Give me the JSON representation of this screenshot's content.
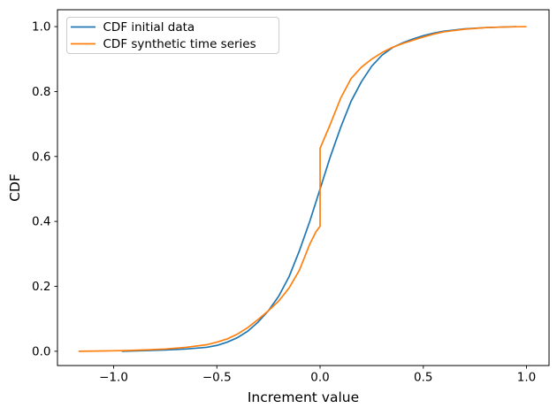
{
  "figure": {
    "background": "#ffffff",
    "spine_color": "#000000"
  },
  "chart_data": {
    "type": "line",
    "title": "",
    "xlabel": "Increment value",
    "ylabel": "CDF",
    "xlim": [
      -1.272,
      1.109
    ],
    "ylim": [
      -0.044,
      1.052
    ],
    "grid": false,
    "xticks": {
      "values": [
        -1.0,
        -0.5,
        0.0,
        0.5,
        1.0
      ],
      "labels": [
        "−1.0",
        "−0.5",
        "0.0",
        "0.5",
        "1.0"
      ]
    },
    "yticks": {
      "values": [
        0.0,
        0.2,
        0.4,
        0.6,
        0.8,
        1.0
      ],
      "labels": [
        "0.0",
        "0.2",
        "0.4",
        "0.6",
        "0.8",
        "1.0"
      ]
    },
    "legend": {
      "position": "upper left",
      "entries": [
        {
          "label": "CDF initial data",
          "color": "#1f77b4"
        },
        {
          "label": "CDF synthetic time series",
          "color": "#ff7f0e"
        }
      ]
    },
    "series": [
      {
        "name": "CDF initial data",
        "color": "#1f77b4",
        "points": [
          [
            -0.96,
            0.0
          ],
          [
            -0.85,
            0.002
          ],
          [
            -0.75,
            0.004
          ],
          [
            -0.65,
            0.007
          ],
          [
            -0.55,
            0.012
          ],
          [
            -0.5,
            0.018
          ],
          [
            -0.45,
            0.028
          ],
          [
            -0.4,
            0.042
          ],
          [
            -0.35,
            0.062
          ],
          [
            -0.3,
            0.09
          ],
          [
            -0.25,
            0.125
          ],
          [
            -0.2,
            0.17
          ],
          [
            -0.15,
            0.23
          ],
          [
            -0.1,
            0.31
          ],
          [
            -0.05,
            0.4
          ],
          [
            0.0,
            0.5
          ],
          [
            0.05,
            0.6
          ],
          [
            0.1,
            0.69
          ],
          [
            0.15,
            0.77
          ],
          [
            0.2,
            0.83
          ],
          [
            0.25,
            0.878
          ],
          [
            0.3,
            0.912
          ],
          [
            0.35,
            0.935
          ],
          [
            0.4,
            0.95
          ],
          [
            0.45,
            0.962
          ],
          [
            0.5,
            0.972
          ],
          [
            0.55,
            0.98
          ],
          [
            0.6,
            0.986
          ],
          [
            0.7,
            0.993
          ],
          [
            0.8,
            0.997
          ],
          [
            0.9,
            0.999
          ],
          [
            0.95,
            1.0
          ]
        ]
      },
      {
        "name": "CDF synthetic time series",
        "color": "#ff7f0e",
        "points": [
          [
            -1.17,
            0.0
          ],
          [
            -1.05,
            0.001
          ],
          [
            -0.95,
            0.002
          ],
          [
            -0.85,
            0.004
          ],
          [
            -0.75,
            0.007
          ],
          [
            -0.65,
            0.012
          ],
          [
            -0.55,
            0.02
          ],
          [
            -0.5,
            0.028
          ],
          [
            -0.45,
            0.038
          ],
          [
            -0.4,
            0.053
          ],
          [
            -0.35,
            0.073
          ],
          [
            -0.3,
            0.098
          ],
          [
            -0.25,
            0.125
          ],
          [
            -0.2,
            0.155
          ],
          [
            -0.15,
            0.195
          ],
          [
            -0.1,
            0.25
          ],
          [
            -0.05,
            0.33
          ],
          [
            -0.02,
            0.368
          ],
          [
            0.0,
            0.385
          ],
          [
            0.0,
            0.625
          ],
          [
            0.05,
            0.7
          ],
          [
            0.1,
            0.78
          ],
          [
            0.15,
            0.84
          ],
          [
            0.2,
            0.875
          ],
          [
            0.25,
            0.9
          ],
          [
            0.3,
            0.92
          ],
          [
            0.35,
            0.936
          ],
          [
            0.4,
            0.948
          ],
          [
            0.45,
            0.958
          ],
          [
            0.5,
            0.968
          ],
          [
            0.55,
            0.977
          ],
          [
            0.6,
            0.984
          ],
          [
            0.7,
            0.992
          ],
          [
            0.8,
            0.997
          ],
          [
            0.9,
            0.999
          ],
          [
            1.0,
            1.0
          ]
        ]
      }
    ]
  }
}
